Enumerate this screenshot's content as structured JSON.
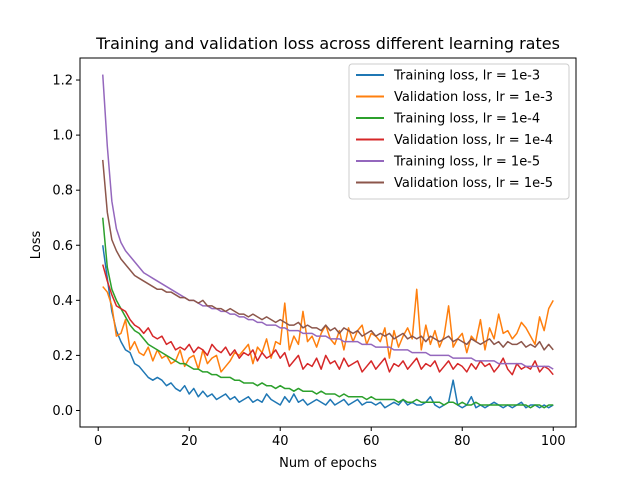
{
  "chart_data": {
    "type": "line",
    "title": "Training and validation loss across different learning rates",
    "xlabel": "Num of epochs",
    "ylabel": "Loss",
    "xlim": [
      -4,
      105
    ],
    "ylim": [
      -0.06,
      1.28
    ],
    "xticks": [
      0,
      20,
      40,
      60,
      80,
      100
    ],
    "yticks": [
      0.0,
      0.2,
      0.4,
      0.6,
      0.8,
      1.0,
      1.2
    ],
    "legend_position": "top-right",
    "grid": false,
    "x_start": 1,
    "x_end": 100,
    "series": [
      {
        "name": "Training loss, lr = 1e-3",
        "color": "#1f77b4",
        "values": [
          0.6,
          0.48,
          0.36,
          0.29,
          0.25,
          0.22,
          0.21,
          0.17,
          0.16,
          0.14,
          0.12,
          0.11,
          0.12,
          0.11,
          0.09,
          0.1,
          0.08,
          0.07,
          0.09,
          0.06,
          0.08,
          0.05,
          0.07,
          0.05,
          0.06,
          0.04,
          0.05,
          0.06,
          0.04,
          0.05,
          0.03,
          0.04,
          0.05,
          0.03,
          0.04,
          0.03,
          0.06,
          0.04,
          0.03,
          0.02,
          0.05,
          0.03,
          0.06,
          0.03,
          0.04,
          0.02,
          0.03,
          0.04,
          0.03,
          0.02,
          0.04,
          0.02,
          0.03,
          0.04,
          0.02,
          0.03,
          0.04,
          0.02,
          0.03,
          0.03,
          0.02,
          0.03,
          0.01,
          0.02,
          0.03,
          0.02,
          0.04,
          0.02,
          0.03,
          0.02,
          0.02,
          0.03,
          0.05,
          0.02,
          0.01,
          0.02,
          0.03,
          0.11,
          0.02,
          0.01,
          0.02,
          0.05,
          0.01,
          0.02,
          0.01,
          0.02,
          0.03,
          0.02,
          0.01,
          0.02,
          0.01,
          0.02,
          0.03,
          0.01,
          0.02,
          0.02,
          0.01,
          0.02,
          0.01,
          0.02
        ]
      },
      {
        "name": "Validation loss, lr = 1e-3",
        "color": "#ff7f0e",
        "values": [
          0.45,
          0.43,
          0.38,
          0.27,
          0.28,
          0.33,
          0.22,
          0.25,
          0.21,
          0.2,
          0.23,
          0.18,
          0.22,
          0.19,
          0.2,
          0.17,
          0.18,
          0.22,
          0.16,
          0.19,
          0.2,
          0.15,
          0.22,
          0.17,
          0.19,
          0.2,
          0.14,
          0.16,
          0.18,
          0.21,
          0.2,
          0.22,
          0.24,
          0.17,
          0.23,
          0.21,
          0.26,
          0.19,
          0.25,
          0.24,
          0.39,
          0.22,
          0.27,
          0.24,
          0.36,
          0.25,
          0.27,
          0.23,
          0.28,
          0.31,
          0.26,
          0.24,
          0.29,
          0.22,
          0.3,
          0.25,
          0.29,
          0.31,
          0.24,
          0.28,
          0.27,
          0.25,
          0.3,
          0.19,
          0.29,
          0.23,
          0.27,
          0.3,
          0.26,
          0.44,
          0.22,
          0.31,
          0.24,
          0.29,
          0.23,
          0.27,
          0.38,
          0.23,
          0.26,
          0.28,
          0.21,
          0.27,
          0.25,
          0.33,
          0.22,
          0.3,
          0.26,
          0.35,
          0.28,
          0.29,
          0.26,
          0.28,
          0.32,
          0.3,
          0.27,
          0.24,
          0.34,
          0.29,
          0.37,
          0.4
        ]
      },
      {
        "name": "Training loss, lr = 1e-4",
        "color": "#2ca02c",
        "values": [
          0.7,
          0.52,
          0.44,
          0.4,
          0.37,
          0.34,
          0.31,
          0.29,
          0.28,
          0.26,
          0.24,
          0.23,
          0.22,
          0.21,
          0.2,
          0.19,
          0.18,
          0.17,
          0.17,
          0.16,
          0.15,
          0.15,
          0.14,
          0.14,
          0.13,
          0.13,
          0.12,
          0.12,
          0.12,
          0.11,
          0.11,
          0.1,
          0.1,
          0.1,
          0.09,
          0.1,
          0.09,
          0.09,
          0.08,
          0.09,
          0.08,
          0.08,
          0.07,
          0.08,
          0.07,
          0.07,
          0.07,
          0.06,
          0.07,
          0.06,
          0.06,
          0.06,
          0.05,
          0.06,
          0.05,
          0.05,
          0.05,
          0.05,
          0.04,
          0.05,
          0.04,
          0.04,
          0.04,
          0.04,
          0.04,
          0.03,
          0.04,
          0.03,
          0.03,
          0.04,
          0.03,
          0.03,
          0.03,
          0.03,
          0.03,
          0.02,
          0.03,
          0.03,
          0.02,
          0.03,
          0.02,
          0.02,
          0.03,
          0.02,
          0.02,
          0.02,
          0.02,
          0.02,
          0.02,
          0.02,
          0.02,
          0.02,
          0.02,
          0.02,
          0.01,
          0.02,
          0.02,
          0.01,
          0.02,
          0.02
        ]
      },
      {
        "name": "Validation loss, lr = 1e-4",
        "color": "#d62728",
        "values": [
          0.53,
          0.47,
          0.42,
          0.38,
          0.37,
          0.36,
          0.33,
          0.31,
          0.3,
          0.28,
          0.3,
          0.27,
          0.26,
          0.27,
          0.24,
          0.25,
          0.22,
          0.23,
          0.22,
          0.24,
          0.21,
          0.23,
          0.22,
          0.2,
          0.24,
          0.22,
          0.21,
          0.23,
          0.2,
          0.22,
          0.19,
          0.21,
          0.2,
          0.22,
          0.18,
          0.21,
          0.19,
          0.2,
          0.22,
          0.19,
          0.21,
          0.16,
          0.18,
          0.2,
          0.15,
          0.17,
          0.16,
          0.19,
          0.15,
          0.2,
          0.17,
          0.18,
          0.15,
          0.19,
          0.16,
          0.17,
          0.18,
          0.14,
          0.16,
          0.18,
          0.15,
          0.17,
          0.19,
          0.14,
          0.17,
          0.16,
          0.18,
          0.15,
          0.17,
          0.19,
          0.15,
          0.17,
          0.16,
          0.18,
          0.14,
          0.16,
          0.18,
          0.15,
          0.17,
          0.16,
          0.14,
          0.17,
          0.15,
          0.18,
          0.16,
          0.17,
          0.14,
          0.16,
          0.19,
          0.15,
          0.13,
          0.17,
          0.15,
          0.16,
          0.15,
          0.18,
          0.14,
          0.16,
          0.15,
          0.13
        ]
      },
      {
        "name": "Training loss, lr = 1e-5",
        "color": "#9467bd",
        "values": [
          1.22,
          0.96,
          0.76,
          0.66,
          0.61,
          0.58,
          0.56,
          0.54,
          0.52,
          0.5,
          0.49,
          0.48,
          0.47,
          0.46,
          0.45,
          0.44,
          0.43,
          0.42,
          0.41,
          0.4,
          0.4,
          0.39,
          0.38,
          0.38,
          0.37,
          0.37,
          0.36,
          0.36,
          0.35,
          0.35,
          0.34,
          0.34,
          0.33,
          0.33,
          0.32,
          0.32,
          0.31,
          0.31,
          0.31,
          0.3,
          0.3,
          0.29,
          0.29,
          0.29,
          0.28,
          0.28,
          0.28,
          0.27,
          0.27,
          0.27,
          0.26,
          0.26,
          0.26,
          0.25,
          0.25,
          0.25,
          0.25,
          0.24,
          0.24,
          0.24,
          0.23,
          0.23,
          0.23,
          0.23,
          0.22,
          0.22,
          0.22,
          0.22,
          0.21,
          0.21,
          0.21,
          0.21,
          0.2,
          0.2,
          0.2,
          0.2,
          0.2,
          0.19,
          0.19,
          0.19,
          0.19,
          0.19,
          0.18,
          0.18,
          0.18,
          0.18,
          0.18,
          0.17,
          0.17,
          0.17,
          0.17,
          0.17,
          0.17,
          0.16,
          0.16,
          0.16,
          0.16,
          0.16,
          0.16,
          0.15
        ]
      },
      {
        "name": "Validation loss, lr = 1e-5",
        "color": "#8c564b",
        "values": [
          0.91,
          0.72,
          0.62,
          0.58,
          0.55,
          0.53,
          0.51,
          0.49,
          0.48,
          0.47,
          0.46,
          0.45,
          0.44,
          0.44,
          0.43,
          0.43,
          0.42,
          0.41,
          0.41,
          0.4,
          0.4,
          0.39,
          0.4,
          0.38,
          0.38,
          0.37,
          0.37,
          0.36,
          0.37,
          0.36,
          0.35,
          0.35,
          0.34,
          0.35,
          0.34,
          0.33,
          0.34,
          0.33,
          0.32,
          0.33,
          0.32,
          0.31,
          0.31,
          0.32,
          0.3,
          0.31,
          0.3,
          0.3,
          0.29,
          0.31,
          0.29,
          0.3,
          0.28,
          0.3,
          0.29,
          0.28,
          0.29,
          0.27,
          0.28,
          0.29,
          0.27,
          0.28,
          0.27,
          0.28,
          0.26,
          0.27,
          0.28,
          0.26,
          0.27,
          0.26,
          0.27,
          0.25,
          0.27,
          0.26,
          0.25,
          0.26,
          0.27,
          0.25,
          0.26,
          0.25,
          0.24,
          0.26,
          0.25,
          0.24,
          0.25,
          0.26,
          0.24,
          0.25,
          0.23,
          0.25,
          0.24,
          0.24,
          0.25,
          0.23,
          0.24,
          0.23,
          0.25,
          0.22,
          0.24,
          0.22
        ]
      }
    ]
  }
}
